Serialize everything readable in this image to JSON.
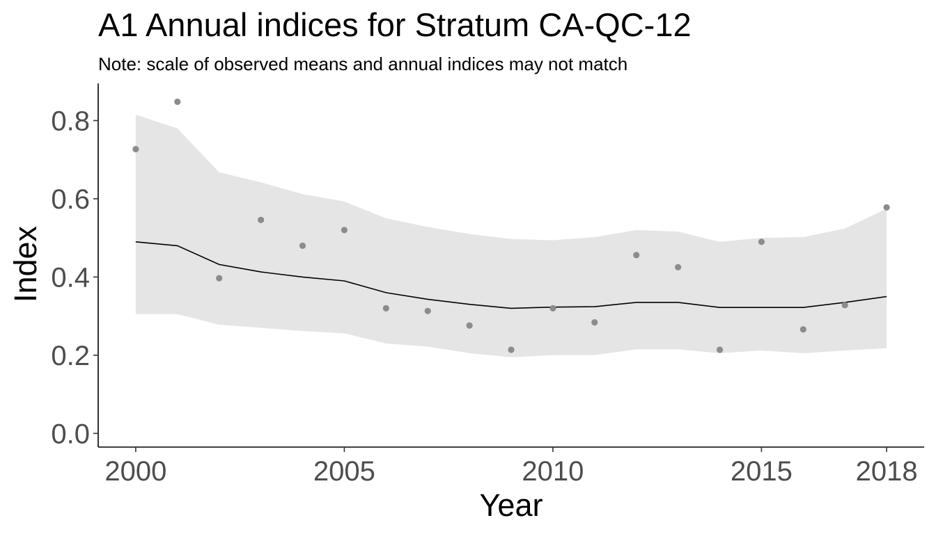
{
  "chart_data": {
    "type": "line",
    "title": "A1 Annual indices for Stratum CA-QC-12",
    "subtitle": "Note: scale of observed means and annual indices may not match",
    "xlabel": "Year",
    "ylabel": "Index",
    "xlim": [
      1999.1,
      2018.9
    ],
    "ylim": [
      -0.035,
      0.895
    ],
    "x_ticks": [
      2000,
      2005,
      2010,
      2015,
      2018
    ],
    "y_ticks": [
      0.0,
      0.2,
      0.4,
      0.6,
      0.8
    ],
    "y_tick_labels": [
      "0.0",
      "0.2",
      "0.4",
      "0.6",
      "0.8"
    ],
    "grid": false,
    "legend": "none",
    "years": [
      2000,
      2001,
      2002,
      2003,
      2004,
      2005,
      2006,
      2007,
      2008,
      2009,
      2010,
      2011,
      2012,
      2013,
      2014,
      2015,
      2016,
      2017,
      2018
    ],
    "series": [
      {
        "role": "index",
        "color": "#000000",
        "values": [
          0.49,
          0.48,
          0.432,
          0.413,
          0.4,
          0.39,
          0.36,
          0.343,
          0.33,
          0.32,
          0.323,
          0.324,
          0.335,
          0.335,
          0.322,
          0.322,
          0.322,
          0.335,
          0.35
        ]
      },
      {
        "role": "credible-interval",
        "color": "#e5e5e5",
        "lower": [
          0.305,
          0.305,
          0.278,
          0.27,
          0.262,
          0.256,
          0.23,
          0.222,
          0.205,
          0.195,
          0.2,
          0.2,
          0.215,
          0.215,
          0.205,
          0.212,
          0.205,
          0.212,
          0.218
        ],
        "upper": [
          0.815,
          0.78,
          0.668,
          0.642,
          0.612,
          0.593,
          0.55,
          0.528,
          0.51,
          0.497,
          0.494,
          0.502,
          0.52,
          0.516,
          0.49,
          0.5,
          0.502,
          0.524,
          0.575
        ]
      },
      {
        "role": "observed-means",
        "color": "#8c8c8c",
        "values": [
          0.727,
          0.848,
          0.397,
          0.546,
          0.48,
          0.52,
          0.32,
          0.313,
          0.276,
          0.214,
          0.32,
          0.284,
          0.456,
          0.425,
          0.214,
          0.49,
          0.266,
          0.328,
          0.578
        ]
      }
    ]
  }
}
